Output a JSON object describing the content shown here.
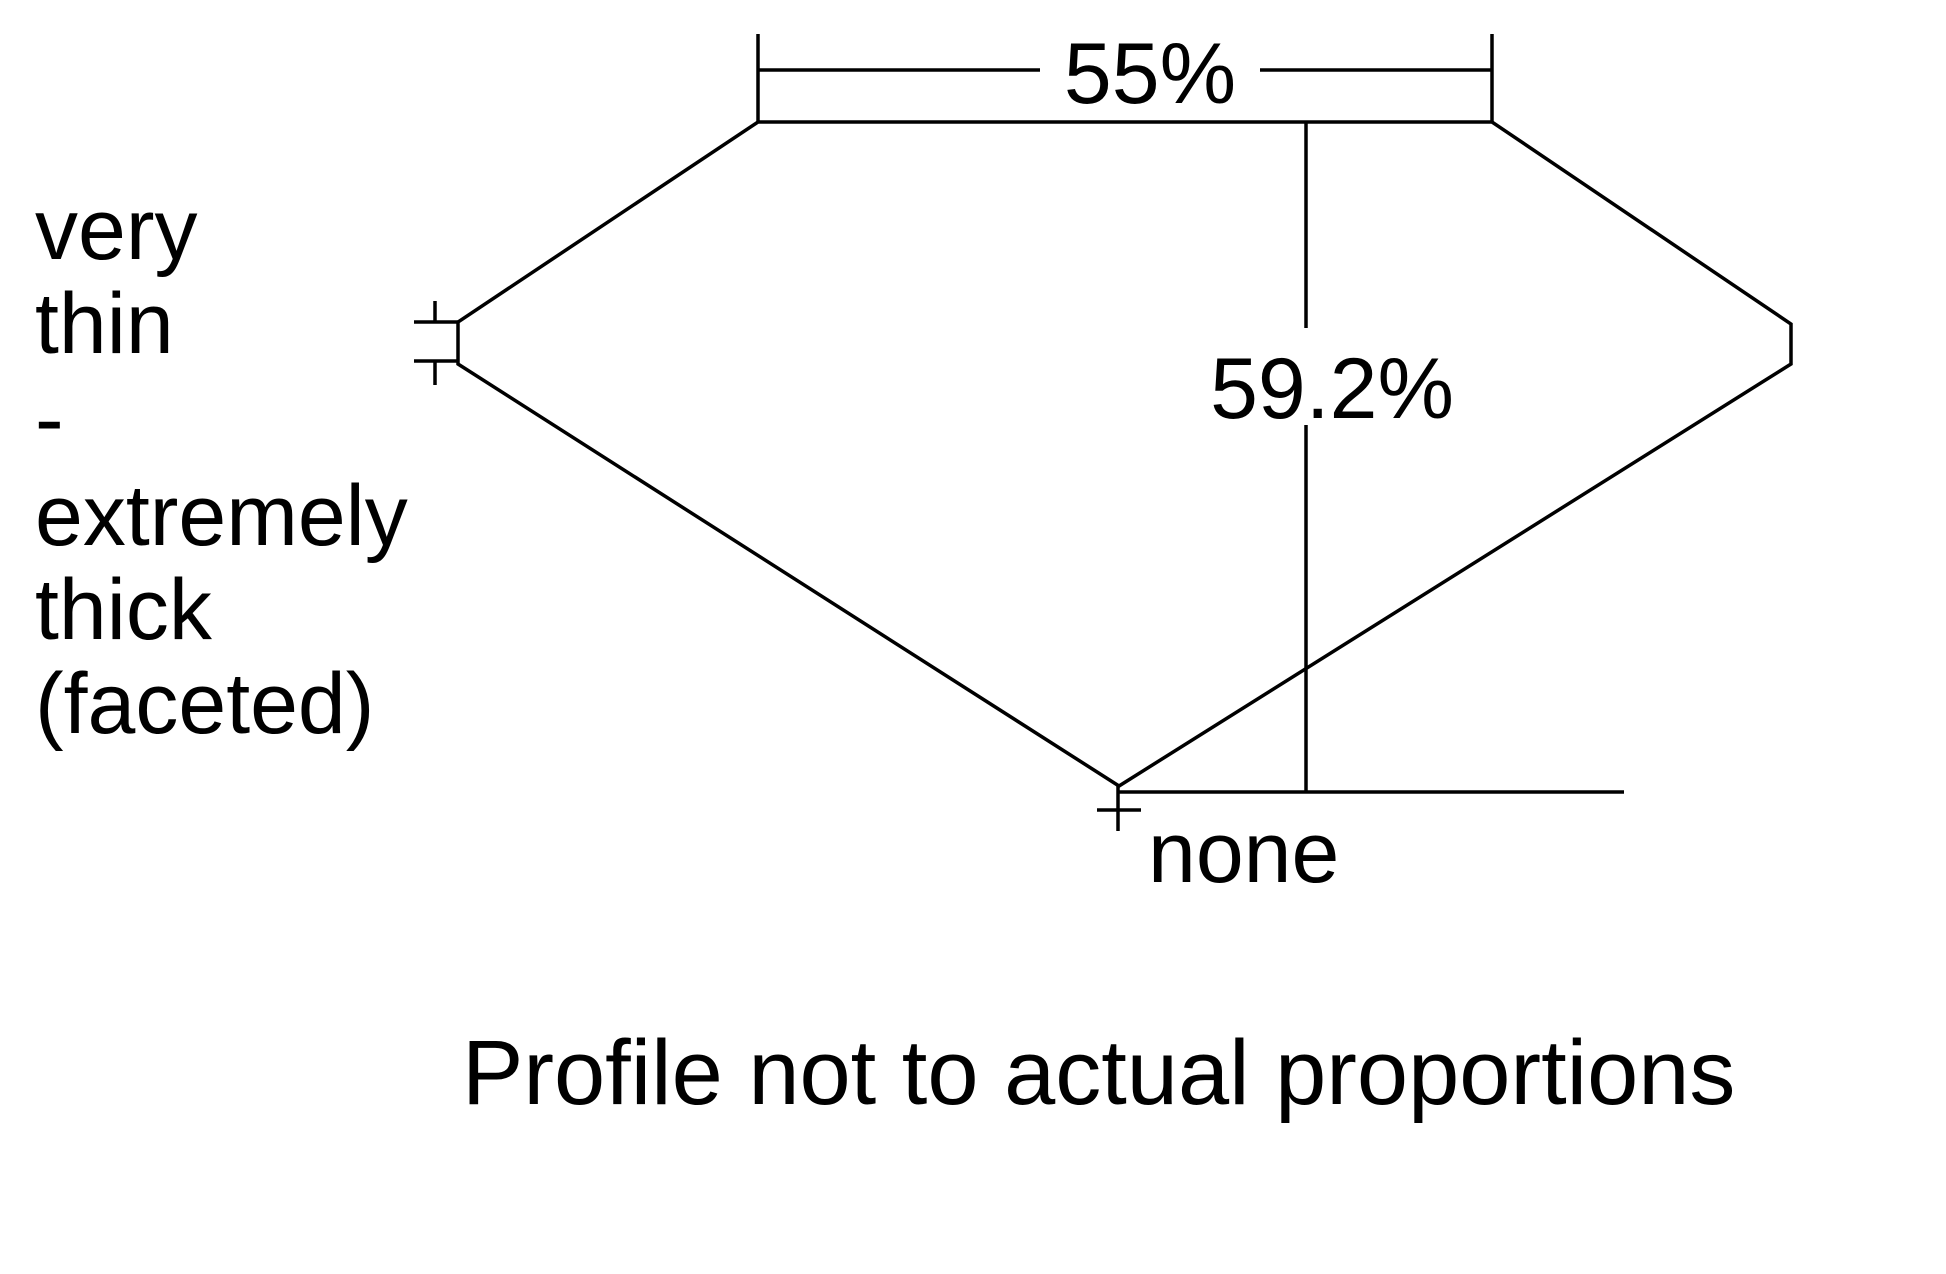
{
  "labels": {
    "table_percent": "55%",
    "total_depth_percent": "59.2%",
    "culet": "none",
    "girdle_lines": [
      "very",
      "thin",
      "-",
      "extremely",
      "thick",
      "(faceted)"
    ],
    "footnote": "Profile not to actual proportions"
  },
  "colors": {
    "line": "#000000",
    "background": "#ffffff"
  }
}
